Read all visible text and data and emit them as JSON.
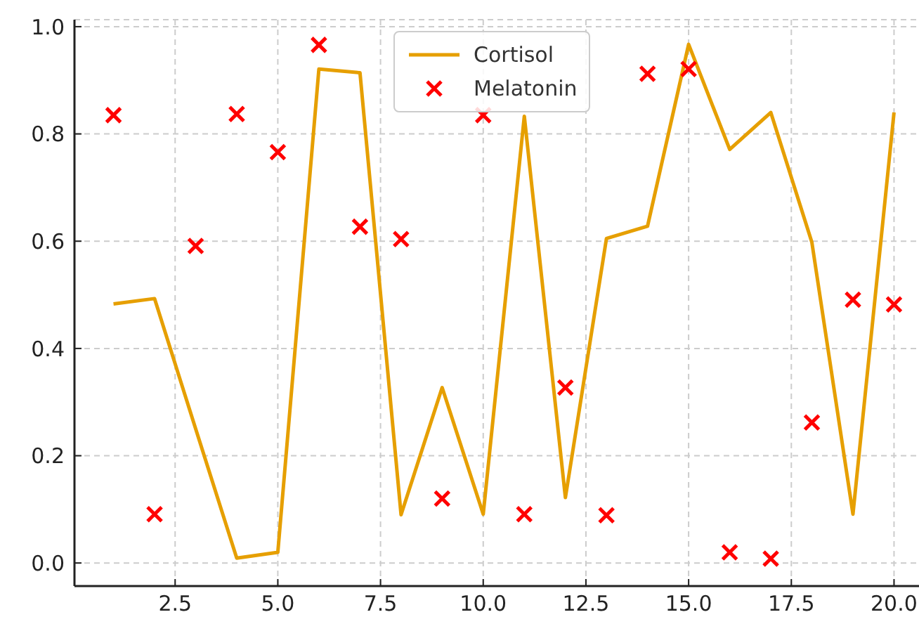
{
  "chart_data": {
    "type": "line",
    "x": [
      1,
      2,
      3,
      4,
      5,
      6,
      7,
      8,
      9,
      10,
      11,
      12,
      13,
      14,
      15,
      16,
      17,
      18,
      19,
      20
    ],
    "series": [
      {
        "name": "Cortisol",
        "color": "#e69f00",
        "marker": "none",
        "line_style": "solid",
        "values": [
          0.483,
          0.493,
          0.25,
          0.009,
          0.02,
          0.921,
          0.914,
          0.09,
          0.327,
          0.091,
          0.833,
          0.122,
          0.605,
          0.628,
          0.967,
          0.771,
          0.84,
          0.598,
          0.091,
          0.84
        ]
      },
      {
        "name": "Melatonin",
        "type": "scatter",
        "color": "#ff0000",
        "marker": "cross",
        "values": [
          0.835,
          0.091,
          0.591,
          0.837,
          0.766,
          0.966,
          0.627,
          0.604,
          0.12,
          0.835,
          0.091,
          0.327,
          0.089,
          0.912,
          0.921,
          0.02,
          0.008,
          0.262,
          0.491,
          0.482
        ]
      }
    ],
    "xlim": [
      0.05,
      20.95
    ],
    "ylim": [
      -0.043,
      1.013
    ],
    "xticks": [
      {
        "value": 2.5,
        "label": "2.5"
      },
      {
        "value": 5,
        "label": "5.0"
      },
      {
        "value": 7.5,
        "label": "7.5"
      },
      {
        "value": 10,
        "label": "10.0"
      },
      {
        "value": 12.5,
        "label": "12.5"
      },
      {
        "value": 15,
        "label": "15.0"
      },
      {
        "value": 17.5,
        "label": "17.5"
      },
      {
        "value": 20,
        "label": "20.0"
      }
    ],
    "yticks": [
      {
        "value": 0,
        "label": "0.0"
      },
      {
        "value": 0.2,
        "label": "0.2"
      },
      {
        "value": 0.4,
        "label": "0.4"
      },
      {
        "value": 0.6,
        "label": "0.6"
      },
      {
        "value": 0.8,
        "label": "0.8"
      },
      {
        "value": 1,
        "label": "1.0"
      }
    ],
    "grid": true,
    "legend": "top"
  }
}
